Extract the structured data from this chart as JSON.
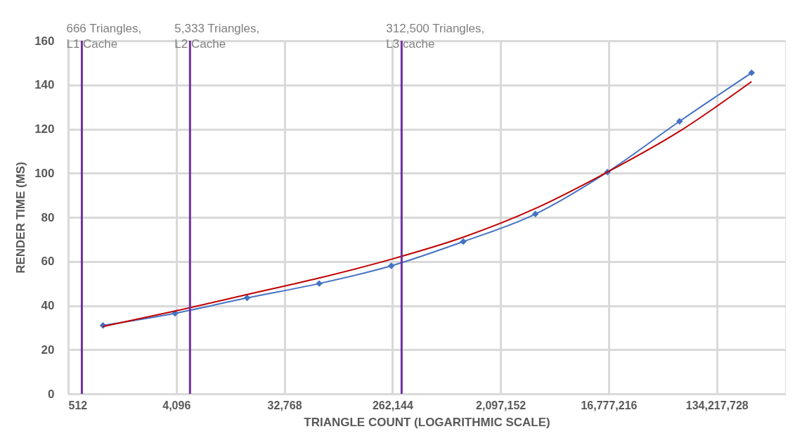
{
  "chart_data": {
    "type": "line",
    "xlabel": "TRIANGLE COUNT (LOGARITHMIC SCALE)",
    "ylabel": "RENDER TIME (MS)",
    "log": "x",
    "xlim": [
      512,
      500000000
    ],
    "xticks": [
      512,
      {
        "value": 4096,
        "label": "4,096"
      },
      {
        "value": 32768,
        "label": "32,768"
      },
      {
        "value": 262144,
        "label": "262,144"
      },
      {
        "value": 2097152,
        "label": "2,097,152"
      },
      {
        "value": 16777216,
        "label": "16,777,216"
      },
      {
        "value": 134217728,
        "label": "134,217,728"
      }
    ],
    "ylim": [
      0,
      160
    ],
    "yticks": [
      0,
      20,
      40,
      60,
      80,
      100,
      120,
      140,
      160
    ],
    "grid": true,
    "x": [
      1000,
      4000,
      16000,
      64000,
      256000,
      1024000,
      4096000,
      16384000,
      65536000,
      262144000
    ],
    "series": [
      {
        "color": "#4472c4",
        "marker": "diamond",
        "values": [
          31,
          36.5,
          43.5,
          50,
          58,
          69,
          81.5,
          100.5,
          123.5,
          145.5
        ]
      },
      {
        "color": "#c00000",
        "marker": "none",
        "values": [
          30.5,
          37.5,
          45,
          52.5,
          61,
          71,
          84,
          100.5,
          119,
          141.5
        ]
      }
    ],
    "ref_lines": [
      {
        "axis": "x",
        "value": 666,
        "label": "666 Triangles,\nL1 Cache",
        "color": "#7030a0"
      },
      {
        "axis": "x",
        "value": 5333,
        "label": "5,333 Triangles,\nL2 Cache",
        "color": "#7030a0"
      },
      {
        "axis": "x",
        "value": 312500,
        "label": "312,500 Triangles,\nL3 cache",
        "color": "#7030a0"
      }
    ]
  }
}
